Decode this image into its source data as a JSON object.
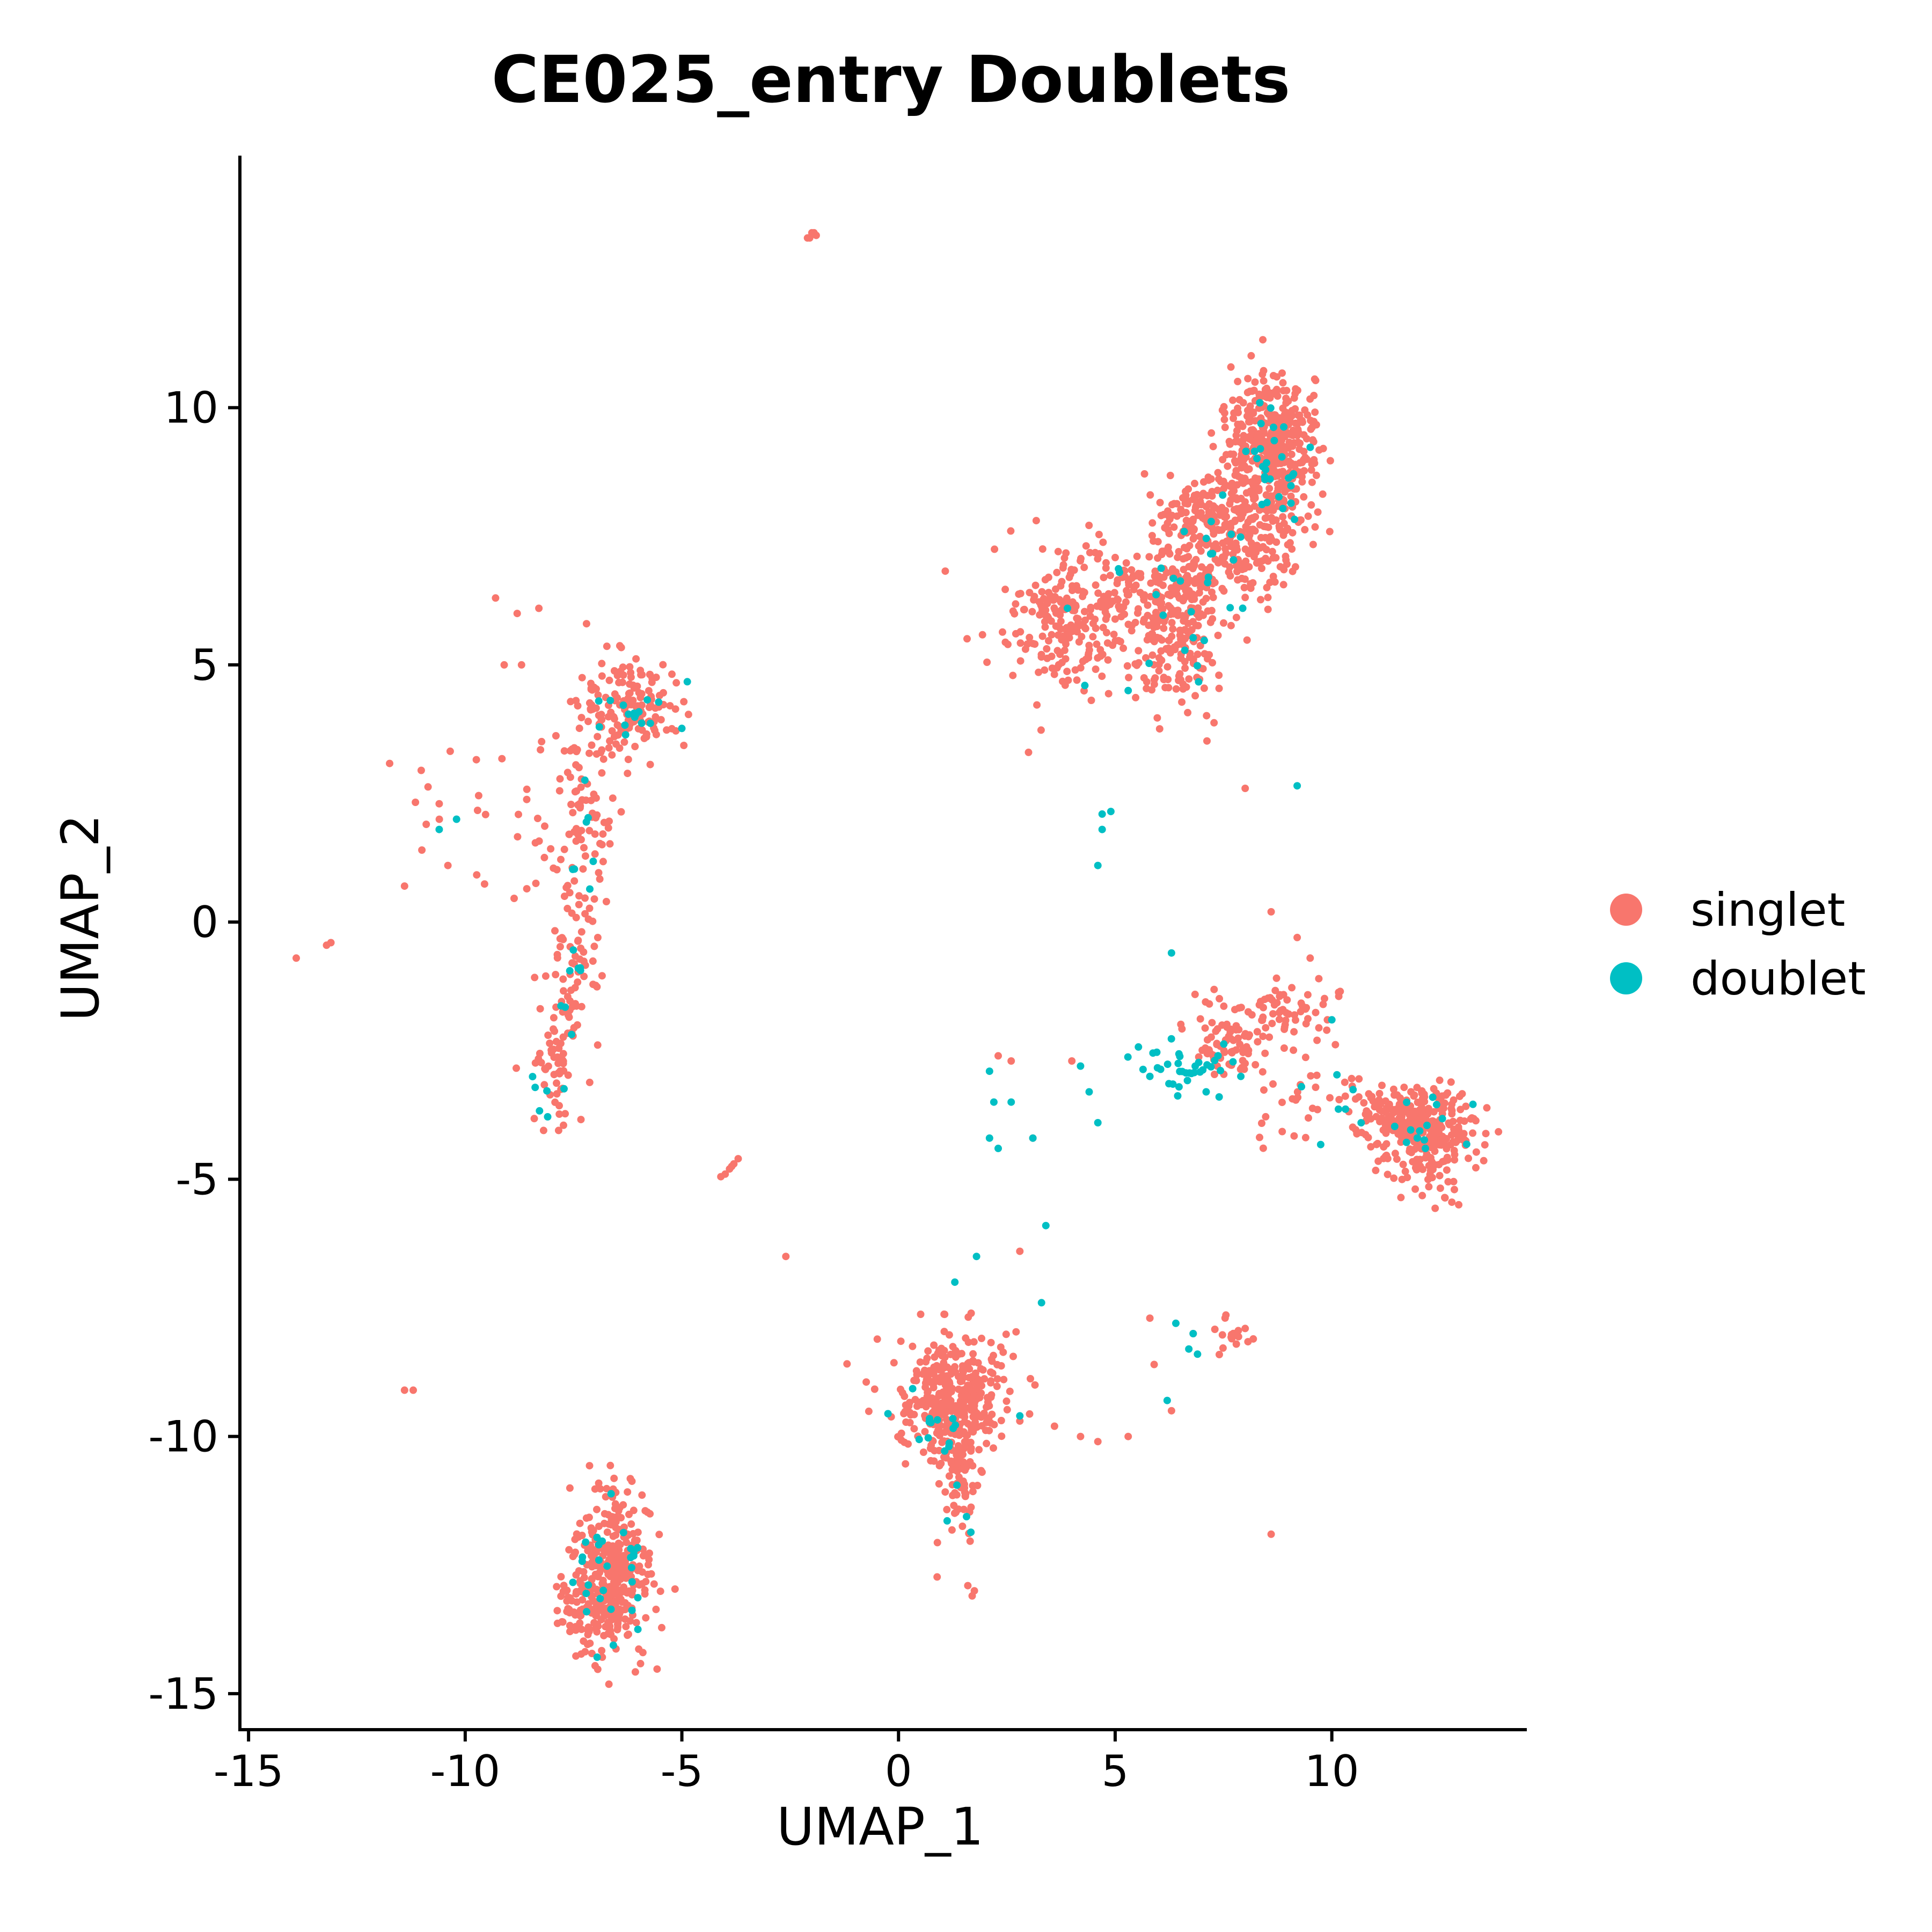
{
  "chart_data": {
    "type": "scatter",
    "title": "CE025_entry Doublets",
    "xlabel": "UMAP_1",
    "ylabel": "UMAP_2",
    "xlim": [
      -15.2,
      14.5
    ],
    "ylim": [
      -15.7,
      14.9
    ],
    "xticks": [
      "-15",
      "-10",
      "-5",
      "0",
      "5",
      "10"
    ],
    "xtick_values": [
      -15,
      -10,
      -5,
      0,
      5,
      10
    ],
    "yticks": [
      "-15",
      "-10",
      "-5",
      "0",
      "5",
      "10"
    ],
    "ytick_values": [
      -15,
      -10,
      -5,
      0,
      5,
      10
    ],
    "grid": false,
    "legend_position": "right",
    "series": [
      {
        "name": "singlet",
        "color": "#F8766D",
        "clusters": [
          {
            "cx": 8.6,
            "cy": 9.2,
            "sx": 0.55,
            "sy": 0.7,
            "n": 420
          },
          {
            "cx": 7.6,
            "cy": 7.6,
            "sx": 0.9,
            "sy": 0.55,
            "n": 330
          },
          {
            "cx": 6.6,
            "cy": 5.8,
            "sx": 0.5,
            "sy": 0.8,
            "n": 210
          },
          {
            "cx": 4.6,
            "cy": 6.1,
            "sx": 1.1,
            "sy": 0.65,
            "n": 240
          },
          {
            "cx": 3.6,
            "cy": 5.4,
            "sx": 0.55,
            "sy": 0.6,
            "n": 60
          },
          {
            "cx": -6.2,
            "cy": 4.2,
            "sx": 0.5,
            "sy": 0.45,
            "n": 140
          },
          {
            "cx": -7.3,
            "cy": 2.2,
            "sx": 0.35,
            "sy": 1.2,
            "n": 80
          },
          {
            "cx": -8.5,
            "cy": 2.5,
            "sx": 1.2,
            "sy": 1.1,
            "n": 40
          },
          {
            "cx": -7.5,
            "cy": -1.0,
            "sx": 0.3,
            "sy": 0.8,
            "n": 70
          },
          {
            "cx": -8.0,
            "cy": -2.8,
            "sx": 0.25,
            "sy": 0.6,
            "n": 45
          },
          {
            "cx": -6.6,
            "cy": -12.6,
            "sx": 0.45,
            "sy": 0.85,
            "n": 330
          },
          {
            "cx": -7.3,
            "cy": -13.4,
            "sx": 0.35,
            "sy": 0.35,
            "n": 60
          },
          {
            "cx": 1.2,
            "cy": -9.3,
            "sx": 0.65,
            "sy": 0.55,
            "n": 320
          },
          {
            "cx": 1.4,
            "cy": -10.8,
            "sx": 0.25,
            "sy": 0.6,
            "n": 70
          },
          {
            "cx": 1.2,
            "cy": -8.4,
            "sx": 0.8,
            "sy": 0.4,
            "n": 40
          },
          {
            "cx": 12.2,
            "cy": -4.0,
            "sx": 0.6,
            "sy": 0.4,
            "n": 230
          },
          {
            "cx": 11.2,
            "cy": -3.6,
            "sx": 0.5,
            "sy": 0.3,
            "n": 60
          },
          {
            "cx": 12.3,
            "cy": -4.9,
            "sx": 0.35,
            "sy": 0.3,
            "n": 30
          },
          {
            "cx": 8.4,
            "cy": -1.9,
            "sx": 0.8,
            "sy": 0.35,
            "n": 90
          },
          {
            "cx": 7.7,
            "cy": -2.5,
            "sx": 0.4,
            "sy": 0.25,
            "n": 50
          },
          {
            "cx": 9.3,
            "cy": -3.6,
            "sx": 0.7,
            "sy": 0.4,
            "n": 25
          },
          {
            "cx": 7.6,
            "cy": -8.0,
            "sx": 0.3,
            "sy": 0.2,
            "n": 15
          }
        ],
        "points": [
          [
            -2.0,
            13.4
          ],
          [
            -2.1,
            13.3
          ],
          [
            -1.9,
            13.35
          ],
          [
            -2.05,
            13.3
          ],
          [
            -1.95,
            13.4
          ],
          [
            -3.9,
            -4.8
          ],
          [
            -3.8,
            -4.7
          ],
          [
            -4.0,
            -4.9
          ],
          [
            -3.7,
            -4.6
          ],
          [
            -4.1,
            -4.95
          ],
          [
            -3.85,
            -4.75
          ],
          [
            -13.9,
            -0.7
          ],
          [
            -13.1,
            -0.4
          ],
          [
            -13.2,
            -0.45
          ],
          [
            -11.4,
            -9.1
          ],
          [
            -11.2,
            -9.1
          ],
          [
            -9.3,
            6.3
          ],
          [
            -8.3,
            6.1
          ],
          [
            -8.8,
            6.0
          ],
          [
            -7.2,
            5.8
          ],
          [
            -8.7,
            5.0
          ],
          [
            -9.1,
            5.0
          ],
          [
            -11.4,
            0.7
          ],
          [
            -10.4,
            1.1
          ],
          [
            -11.0,
            1.4
          ],
          [
            -10.9,
            1.9
          ],
          [
            -10.6,
            2.3
          ],
          [
            -2.6,
            -6.5
          ],
          [
            3.0,
            3.3
          ],
          [
            8.0,
            2.6
          ],
          [
            8.6,
            -11.9
          ],
          [
            2.8,
            -6.4
          ],
          [
            4.6,
            -10.1
          ],
          [
            5.3,
            -10.0
          ],
          [
            4.2,
            -10.0
          ],
          [
            3.6,
            -9.8
          ],
          [
            2.8,
            -9.7
          ],
          [
            1.7,
            -13.1
          ],
          [
            1.6,
            -12.9
          ],
          [
            1.75,
            -13.0
          ],
          [
            2.3,
            -2.6
          ],
          [
            2.6,
            -2.7
          ],
          [
            4.0,
            -2.7
          ],
          [
            3.1,
            -4.2
          ],
          [
            8.6,
            0.2
          ],
          [
            9.2,
            -0.3
          ],
          [
            9.5,
            -0.7
          ],
          [
            9.7,
            -1.1
          ],
          [
            9.8,
            -1.6
          ],
          [
            5.8,
            -7.7
          ],
          [
            6.8,
            -8.0
          ],
          [
            8.0,
            -7.9
          ],
          [
            5.9,
            -8.6
          ],
          [
            6.3,
            -9.5
          ]
        ]
      },
      {
        "name": "doublet",
        "color": "#00BFC4",
        "clusters": [
          {
            "cx": 8.7,
            "cy": 9.0,
            "sx": 0.45,
            "sy": 0.6,
            "n": 28
          },
          {
            "cx": 7.0,
            "cy": 7.0,
            "sx": 0.8,
            "sy": 0.6,
            "n": 18
          },
          {
            "cx": 6.6,
            "cy": 5.5,
            "sx": 0.5,
            "sy": 0.5,
            "n": 8
          },
          {
            "cx": -6.0,
            "cy": 4.2,
            "sx": 0.4,
            "sy": 0.35,
            "n": 16
          },
          {
            "cx": -7.2,
            "cy": 1.5,
            "sx": 0.25,
            "sy": 0.9,
            "n": 8
          },
          {
            "cx": -7.6,
            "cy": -1.2,
            "sx": 0.2,
            "sy": 0.6,
            "n": 8
          },
          {
            "cx": -8.2,
            "cy": -3.3,
            "sx": 0.2,
            "sy": 0.3,
            "n": 6
          },
          {
            "cx": -6.6,
            "cy": -12.5,
            "sx": 0.4,
            "sy": 0.8,
            "n": 30
          },
          {
            "cx": 1.0,
            "cy": -9.8,
            "sx": 0.6,
            "sy": 0.5,
            "n": 14
          },
          {
            "cx": 1.5,
            "cy": -11.6,
            "sx": 0.15,
            "sy": 0.3,
            "n": 4
          },
          {
            "cx": 12.0,
            "cy": -4.0,
            "sx": 0.6,
            "sy": 0.4,
            "n": 14
          },
          {
            "cx": 6.6,
            "cy": -2.8,
            "sx": 0.7,
            "sy": 0.2,
            "n": 34
          },
          {
            "cx": 10.5,
            "cy": -3.6,
            "sx": 0.5,
            "sy": 0.3,
            "n": 6
          }
        ],
        "points": [
          [
            -10.2,
            2.0
          ],
          [
            -10.6,
            1.8
          ],
          [
            4.7,
            2.1
          ],
          [
            4.9,
            2.15
          ],
          [
            4.7,
            1.8
          ],
          [
            4.6,
            1.1
          ],
          [
            9.2,
            2.65
          ],
          [
            6.3,
            -0.6
          ],
          [
            4.2,
            -2.8
          ],
          [
            4.4,
            -3.3
          ],
          [
            4.6,
            -3.9
          ],
          [
            2.1,
            -2.9
          ],
          [
            2.2,
            -3.5
          ],
          [
            2.6,
            -3.5
          ],
          [
            2.1,
            -4.2
          ],
          [
            2.3,
            -4.4
          ],
          [
            3.1,
            -4.2
          ],
          [
            1.3,
            -7.0
          ],
          [
            1.8,
            -6.5
          ],
          [
            3.4,
            -5.9
          ],
          [
            3.3,
            -7.4
          ],
          [
            2.8,
            -9.6
          ],
          [
            6.4,
            -7.8
          ],
          [
            6.7,
            -8.3
          ],
          [
            6.8,
            -8.0
          ],
          [
            6.9,
            -8.4
          ],
          [
            6.2,
            -9.3
          ],
          [
            7.9,
            -3.0
          ],
          [
            7.4,
            -3.4
          ],
          [
            7.1,
            -3.3
          ],
          [
            5.8,
            -3.0
          ],
          [
            9.3,
            -3.2
          ],
          [
            10.0,
            -1.9
          ],
          [
            5.3,
            4.5
          ],
          [
            4.3,
            4.6
          ],
          [
            5.1,
            6.8
          ],
          [
            3.9,
            6.1
          ]
        ]
      }
    ]
  }
}
